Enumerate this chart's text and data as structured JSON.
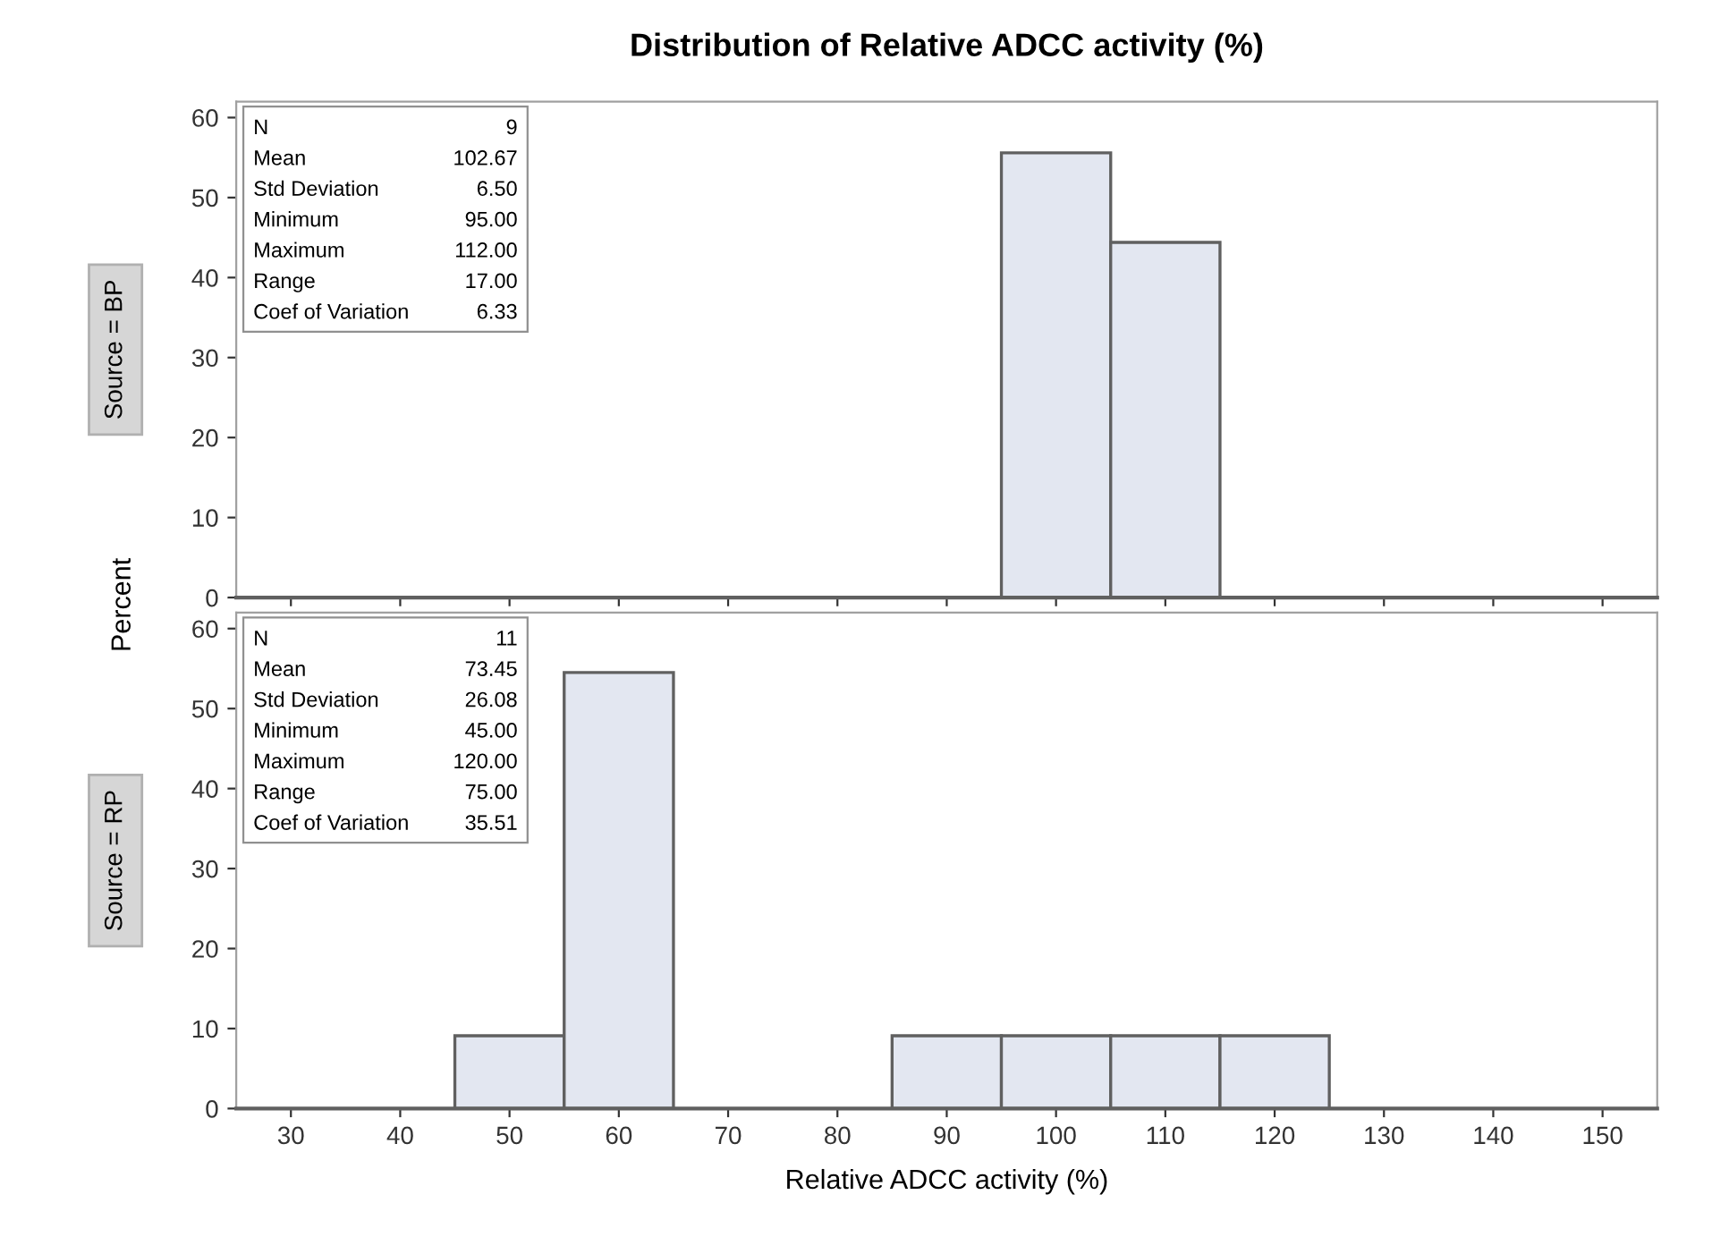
{
  "chart_data": [
    {
      "type": "histogram",
      "title": "Distribution of Relative ADCC activity (%)",
      "subtitle": "Source = BP",
      "ylabel": "Percent",
      "bins": [
        25,
        35,
        45,
        55,
        65,
        75,
        85,
        95,
        105,
        115,
        125,
        135,
        145,
        155
      ],
      "values": [
        0,
        0,
        0,
        0,
        0,
        0,
        0,
        55.6,
        44.4,
        0,
        0,
        0,
        0
      ],
      "color": "#e3e7f1",
      "xlim": [
        25,
        155
      ],
      "xticks": [
        30,
        40,
        50,
        60,
        70,
        80,
        90,
        100,
        110,
        120,
        130,
        140,
        150
      ],
      "ylim": [
        0,
        62
      ],
      "yticks": [
        0,
        10,
        20,
        30,
        40,
        50,
        60
      ],
      "tick_labels": "y",
      "grid": false,
      "annotations": [
        "N",
        "9",
        "Mean",
        "102.67",
        "Std Deviation",
        "6.50",
        "Minimum",
        "95.00",
        "Maximum",
        "112.00",
        "Range",
        "17.00",
        "Coef of Variation",
        "6.33"
      ]
    },
    {
      "type": "histogram",
      "subtitle": "Source = RP",
      "xlabel": "Relative ADCC activity (%)",
      "bins": [
        25,
        35,
        45,
        55,
        65,
        75,
        85,
        95,
        105,
        115,
        125,
        135,
        145,
        155
      ],
      "values": [
        0,
        0,
        9.1,
        54.5,
        0,
        0,
        9.1,
        9.1,
        9.1,
        9.1,
        0,
        0,
        0
      ],
      "color": "#e3e7f1",
      "xlim": [
        25,
        155
      ],
      "xticks": [
        30,
        40,
        50,
        60,
        70,
        80,
        90,
        100,
        110,
        120,
        130,
        140,
        150
      ],
      "ylim": [
        0,
        62
      ],
      "yticks": [
        0,
        10,
        20,
        30,
        40,
        50,
        60
      ],
      "grid": false,
      "annotations": [
        "N",
        "11",
        "Mean",
        "73.45",
        "Std Deviation",
        "26.08",
        "Minimum",
        "45.00",
        "Maximum",
        "120.00",
        "Range",
        "75.00",
        "Coef of Variation",
        "35.51"
      ]
    }
  ]
}
